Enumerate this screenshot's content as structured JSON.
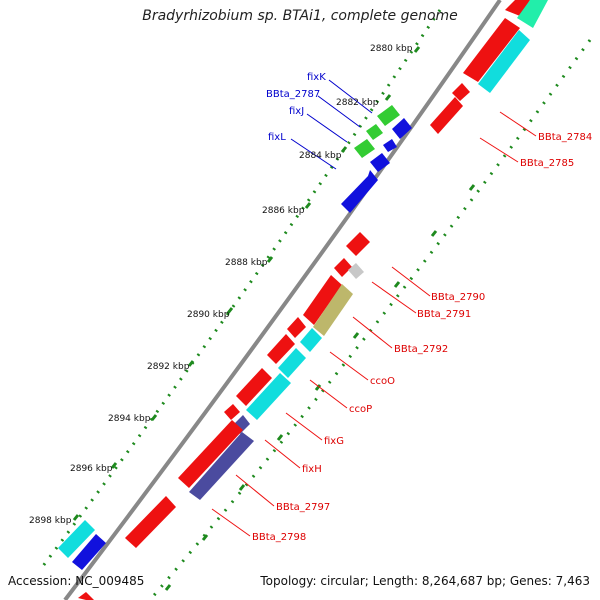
{
  "title": "Bradyrhizobium sp. BTAi1, complete genome",
  "footer": {
    "accession": "Accession: NC_009485",
    "topology": "Topology: circular; Length: 8,264,687 bp; Genes: 7,463"
  },
  "colors": {
    "backbone": "#888888",
    "tick": "#1e8a1e",
    "red": "#ee1111",
    "cyan": "#11dddd",
    "green": "#33cc33",
    "blue": "#1111dd",
    "grey": "#c8c8c8",
    "olive": "#bdb76b",
    "purple": "#4b4b9f",
    "aquamarine": "#22eeaa",
    "label_red": "#dd0000",
    "label_blue": "#0000cc"
  },
  "scale_labels": [
    "2880 kbp",
    "2882 kbp",
    "2884 kbp",
    "2886 kbp",
    "2888 kbp",
    "2890 kbp",
    "2892 kbp",
    "2894 kbp",
    "2896 kbp",
    "2898 kbp"
  ],
  "gene_labels": {
    "fixK": "fixK",
    "BBta_2787": "BBta_2787",
    "fixJ": "fixJ",
    "fixL": "fixL",
    "BBta_2784": "BBta_2784",
    "BBta_2785": "BBta_2785",
    "BBta_2790": "BBta_2790",
    "BBta_2791": "BBta_2791",
    "BBta_2792": "BBta_2792",
    "ccoO": "ccoO",
    "ccoP": "ccoP",
    "fixG": "fixG",
    "fixH": "fixH",
    "BBta_2797": "BBta_2797",
    "BBta_2798": "BBta_2798"
  }
}
